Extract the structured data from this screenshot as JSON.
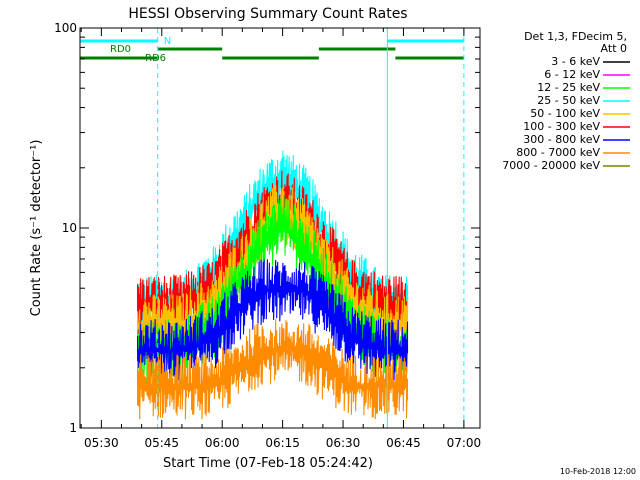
{
  "chart_data": {
    "type": "line",
    "title": "HESSI Observing Summary Count Rates",
    "xlabel": "Start Time (07-Feb-18 05:24:42)",
    "ylabel": "Count Rate (s⁻¹ detector⁻¹)",
    "y_scale": "log",
    "ylim": [
      1,
      100
    ],
    "xlim": [
      "05:24:42",
      "07:04:00"
    ],
    "x_ticks": [
      "05:30",
      "05:45",
      "06:00",
      "06:15",
      "06:30",
      "06:45",
      "07:00"
    ],
    "y_ticks": [
      "1",
      "10",
      "100"
    ],
    "legend": {
      "placement": "right",
      "header": [
        "Det 1,3, FDecim 5,",
        "Att 0"
      ],
      "entries": [
        {
          "label": "3 - 6 keV",
          "color": "#000000"
        },
        {
          "label": "6 - 12 keV",
          "color": "#ff00ff"
        },
        {
          "label": "12 - 25 keV",
          "color": "#00ff00"
        },
        {
          "label": "25 - 50 keV",
          "color": "#00ffff"
        },
        {
          "label": "50 - 100 keV",
          "color": "#ffbf00"
        },
        {
          "label": "100 - 300 keV",
          "color": "#ff0000"
        },
        {
          "label": "300 - 800 keV",
          "color": "#0000ff"
        },
        {
          "label": "800 - 7000 keV",
          "color": "#ff8c00"
        },
        {
          "label": "7000 - 20000 keV",
          "color": "#808000"
        }
      ]
    },
    "annotations": {
      "N_label": "N",
      "RD0_label": "RD0",
      "RD6_label": "RD6",
      "night_bars": [
        [
          "05:24:42",
          "05:44:00"
        ],
        [
          "06:41:00",
          "07:00:00"
        ]
      ],
      "rd0_bars": [
        [
          "05:44:00",
          "06:00:00"
        ],
        [
          "06:24:00",
          "06:43:00"
        ]
      ],
      "rd6_bars": [
        [
          "05:24:42",
          "05:44:00"
        ],
        [
          "06:00:00",
          "06:24:00"
        ],
        [
          "06:43:00",
          "07:00:00"
        ]
      ],
      "solid_vlines": [
        "05:24:42",
        "06:41:00"
      ],
      "dashed_vlines": [
        "05:44:00",
        "07:00:00"
      ]
    },
    "data_window": [
      "05:39:00",
      "06:46:00"
    ],
    "series": [
      {
        "name": "25 - 50 keV",
        "color": "#00ffff",
        "x": [
          "05:39",
          "05:50",
          "05:58",
          "06:05",
          "06:10",
          "06:15",
          "06:20",
          "06:25",
          "06:32",
          "06:40",
          "06:46"
        ],
        "y": [
          5,
          5,
          7,
          12,
          18,
          22,
          18,
          12,
          7,
          5,
          5
        ]
      },
      {
        "name": "100 - 300 keV",
        "color": "#ff0000",
        "x": [
          "05:39",
          "05:50",
          "05:58",
          "06:05",
          "06:10",
          "06:15",
          "06:20",
          "06:25",
          "06:32",
          "06:40",
          "06:46"
        ],
        "y": [
          5,
          5,
          6,
          10,
          14,
          17,
          14,
          10,
          6,
          5,
          5
        ]
      },
      {
        "name": "50 - 100 keV",
        "color": "#ffbf00",
        "x": [
          "05:39",
          "05:50",
          "05:58",
          "06:05",
          "06:10",
          "06:15",
          "06:20",
          "06:25",
          "06:32",
          "06:40",
          "06:46"
        ],
        "y": [
          4,
          4,
          5,
          8,
          12,
          15,
          12,
          8,
          5,
          4,
          4
        ]
      },
      {
        "name": "12 - 25 keV",
        "color": "#00ff00",
        "x": [
          "05:39",
          "05:50",
          "05:58",
          "06:05",
          "06:10",
          "06:15",
          "06:20",
          "06:25",
          "06:32",
          "06:40",
          "06:46"
        ],
        "y": [
          3,
          3,
          4,
          7,
          10,
          13,
          10,
          7,
          4,
          3,
          3
        ]
      },
      {
        "name": "300 - 800 keV",
        "color": "#0000ff",
        "x": [
          "05:39",
          "05:50",
          "05:58",
          "06:05",
          "06:10",
          "06:15",
          "06:20",
          "06:25",
          "06:32",
          "06:40",
          "06:46"
        ],
        "y": [
          3,
          3,
          3.5,
          5,
          6,
          6,
          6,
          5,
          3.5,
          3,
          3
        ]
      },
      {
        "name": "800 - 7000 keV",
        "color": "#ff8c00",
        "x": [
          "05:39",
          "05:50",
          "05:58",
          "06:05",
          "06:10",
          "06:15",
          "06:20",
          "06:25",
          "06:32",
          "06:40",
          "06:46"
        ],
        "y": [
          2,
          2,
          2,
          2.5,
          3,
          3,
          3,
          2.5,
          2,
          2,
          2
        ]
      }
    ]
  },
  "footer": {
    "date_stamp": "10-Feb-2018 12:00"
  }
}
